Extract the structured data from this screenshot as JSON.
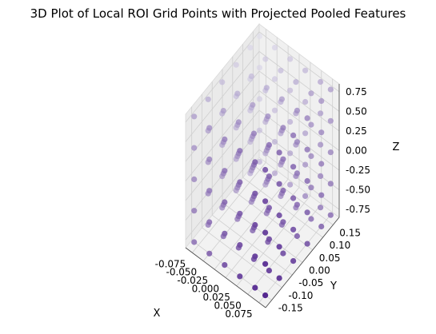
{
  "chart_data": {
    "type": "scatter3d",
    "title": "3D Plot of Local ROI Grid Points with Projected  Pooled Features",
    "xlabel": "X",
    "ylabel": "Y",
    "zlabel": "Z",
    "xlim": [
      -0.09,
      0.09
    ],
    "ylim": [
      -0.18,
      0.18
    ],
    "zlim": [
      -0.85,
      0.85
    ],
    "x_ticks": [
      "-0.075",
      "-0.050",
      "-0.025",
      "0.000",
      "0.025",
      "0.050",
      "0.075"
    ],
    "y_ticks": [
      "-0.15",
      "-0.10",
      "-0.05",
      "0.00",
      "0.05",
      "0.10",
      "0.15"
    ],
    "z_ticks": [
      "-0.75",
      "-0.50",
      "-0.25",
      "0.00",
      "0.25",
      "0.50",
      "0.75"
    ],
    "grid": true,
    "colormap": "Purples",
    "grid_points": {
      "x": [
        -0.08,
        -0.0457,
        -0.0114,
        0.0229,
        0.0571,
        0.08
      ],
      "y": [
        -0.16,
        -0.0914,
        -0.0229,
        0.0457,
        0.1143,
        0.16
      ],
      "z": [
        -0.8,
        -0.4,
        0.0,
        0.4,
        0.8
      ]
    },
    "color_low": "#dcdaeb",
    "color_high": "#54278f"
  }
}
